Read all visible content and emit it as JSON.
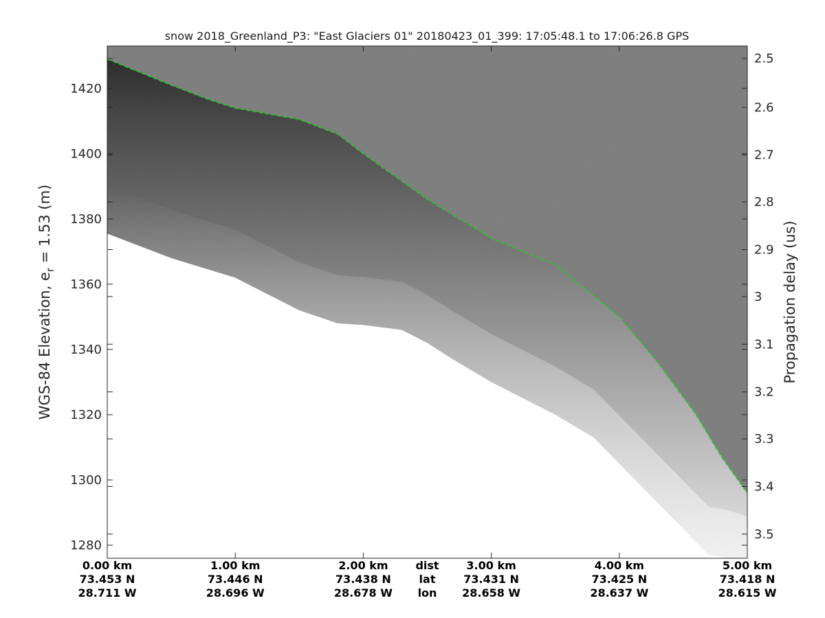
{
  "chart_data": {
    "type": "heatmap",
    "title": "snow 2018_Greenland_P3: \"East Glaciers 01\"  20180423_01_399: 17:05:48.1 to 17:06:26.8 GPS",
    "ylabel": {
      "prefix": "WGS-84 Elevation, e",
      "subscript": "r",
      "suffix": " = 1.53 (m)"
    },
    "ylabel_right": "Propagation delay (us)",
    "ylim": [
      1276,
      1433
    ],
    "y_ticks": [
      1280,
      1300,
      1320,
      1340,
      1360,
      1380,
      1400,
      1420
    ],
    "y_tick_labels": [
      "1280",
      "1300",
      "1320",
      "1340",
      "1360",
      "1380",
      "1400",
      "1420"
    ],
    "right_ticks": [
      {
        "label": "2.5",
        "elev": 1429.2
      },
      {
        "label": "2.6",
        "elev": 1414.2
      },
      {
        "label": "2.7",
        "elev": 1399.6
      },
      {
        "label": "2.8",
        "elev": 1385.2
      },
      {
        "label": "2.9",
        "elev": 1370.6
      },
      {
        "label": "3",
        "elev": 1356.2
      },
      {
        "label": "3.1",
        "elev": 1341.6
      },
      {
        "label": "3.2",
        "elev": 1327.0
      },
      {
        "label": "3.3",
        "elev": 1312.6
      },
      {
        "label": "3.4",
        "elev": 1298.0
      },
      {
        "label": "3.5",
        "elev": 1283.4
      }
    ],
    "xlim": [
      0,
      5
    ],
    "x_ticks": [
      {
        "km": 0,
        "dist": "0.00 km",
        "lat": "73.453 N",
        "lon": "28.711 W"
      },
      {
        "km": 1,
        "dist": "1.00 km",
        "lat": "73.446 N",
        "lon": "28.696 W"
      },
      {
        "km": 2,
        "dist": "2.00 km",
        "lat": "73.438 N",
        "lon": "28.678 W"
      },
      {
        "km": 3,
        "dist": "3.00 km",
        "lat": "73.431 N",
        "lon": "28.658 W"
      },
      {
        "km": 4,
        "dist": "4.00 km",
        "lat": "73.425 N",
        "lon": "28.637 W"
      },
      {
        "km": 5,
        "dist": "5.00 km",
        "lat": "73.418 N",
        "lon": "28.615 W"
      }
    ],
    "x_row_labels": {
      "km": 2.5,
      "dist": "dist",
      "lat": "lat",
      "lon": "lon"
    },
    "surface_line_color": "#22cc22",
    "air_color": "#787878",
    "surface_trace": [
      {
        "x": 0.0,
        "y": 1429.0
      },
      {
        "x": 0.5,
        "y": 1421.0
      },
      {
        "x": 0.8,
        "y": 1416.5
      },
      {
        "x": 1.0,
        "y": 1414.0
      },
      {
        "x": 1.5,
        "y": 1410.5
      },
      {
        "x": 1.8,
        "y": 1406.0
      },
      {
        "x": 2.0,
        "y": 1400.0
      },
      {
        "x": 2.5,
        "y": 1386.0
      },
      {
        "x": 3.0,
        "y": 1374.0
      },
      {
        "x": 3.5,
        "y": 1366.0
      },
      {
        "x": 4.0,
        "y": 1350.0
      },
      {
        "x": 4.3,
        "y": 1336.0
      },
      {
        "x": 4.6,
        "y": 1320.0
      },
      {
        "x": 4.8,
        "y": 1307.0
      },
      {
        "x": 5.0,
        "y": 1296.0
      }
    ],
    "signal_floor": [
      {
        "x": 0.0,
        "y": 1375.5
      },
      {
        "x": 0.5,
        "y": 1368.0
      },
      {
        "x": 1.0,
        "y": 1362.0
      },
      {
        "x": 1.5,
        "y": 1352.0
      },
      {
        "x": 1.8,
        "y": 1348.0
      },
      {
        "x": 2.0,
        "y": 1347.5
      },
      {
        "x": 2.3,
        "y": 1346.0
      },
      {
        "x": 2.5,
        "y": 1342.0
      },
      {
        "x": 2.7,
        "y": 1337.0
      },
      {
        "x": 3.0,
        "y": 1330.0
      },
      {
        "x": 3.5,
        "y": 1320.0
      },
      {
        "x": 3.8,
        "y": 1313.0
      },
      {
        "x": 4.0,
        "y": 1305.0
      },
      {
        "x": 4.5,
        "y": 1285.0
      },
      {
        "x": 4.7,
        "y": 1277.0
      },
      {
        "x": 4.85,
        "y": 1276.0
      }
    ]
  }
}
